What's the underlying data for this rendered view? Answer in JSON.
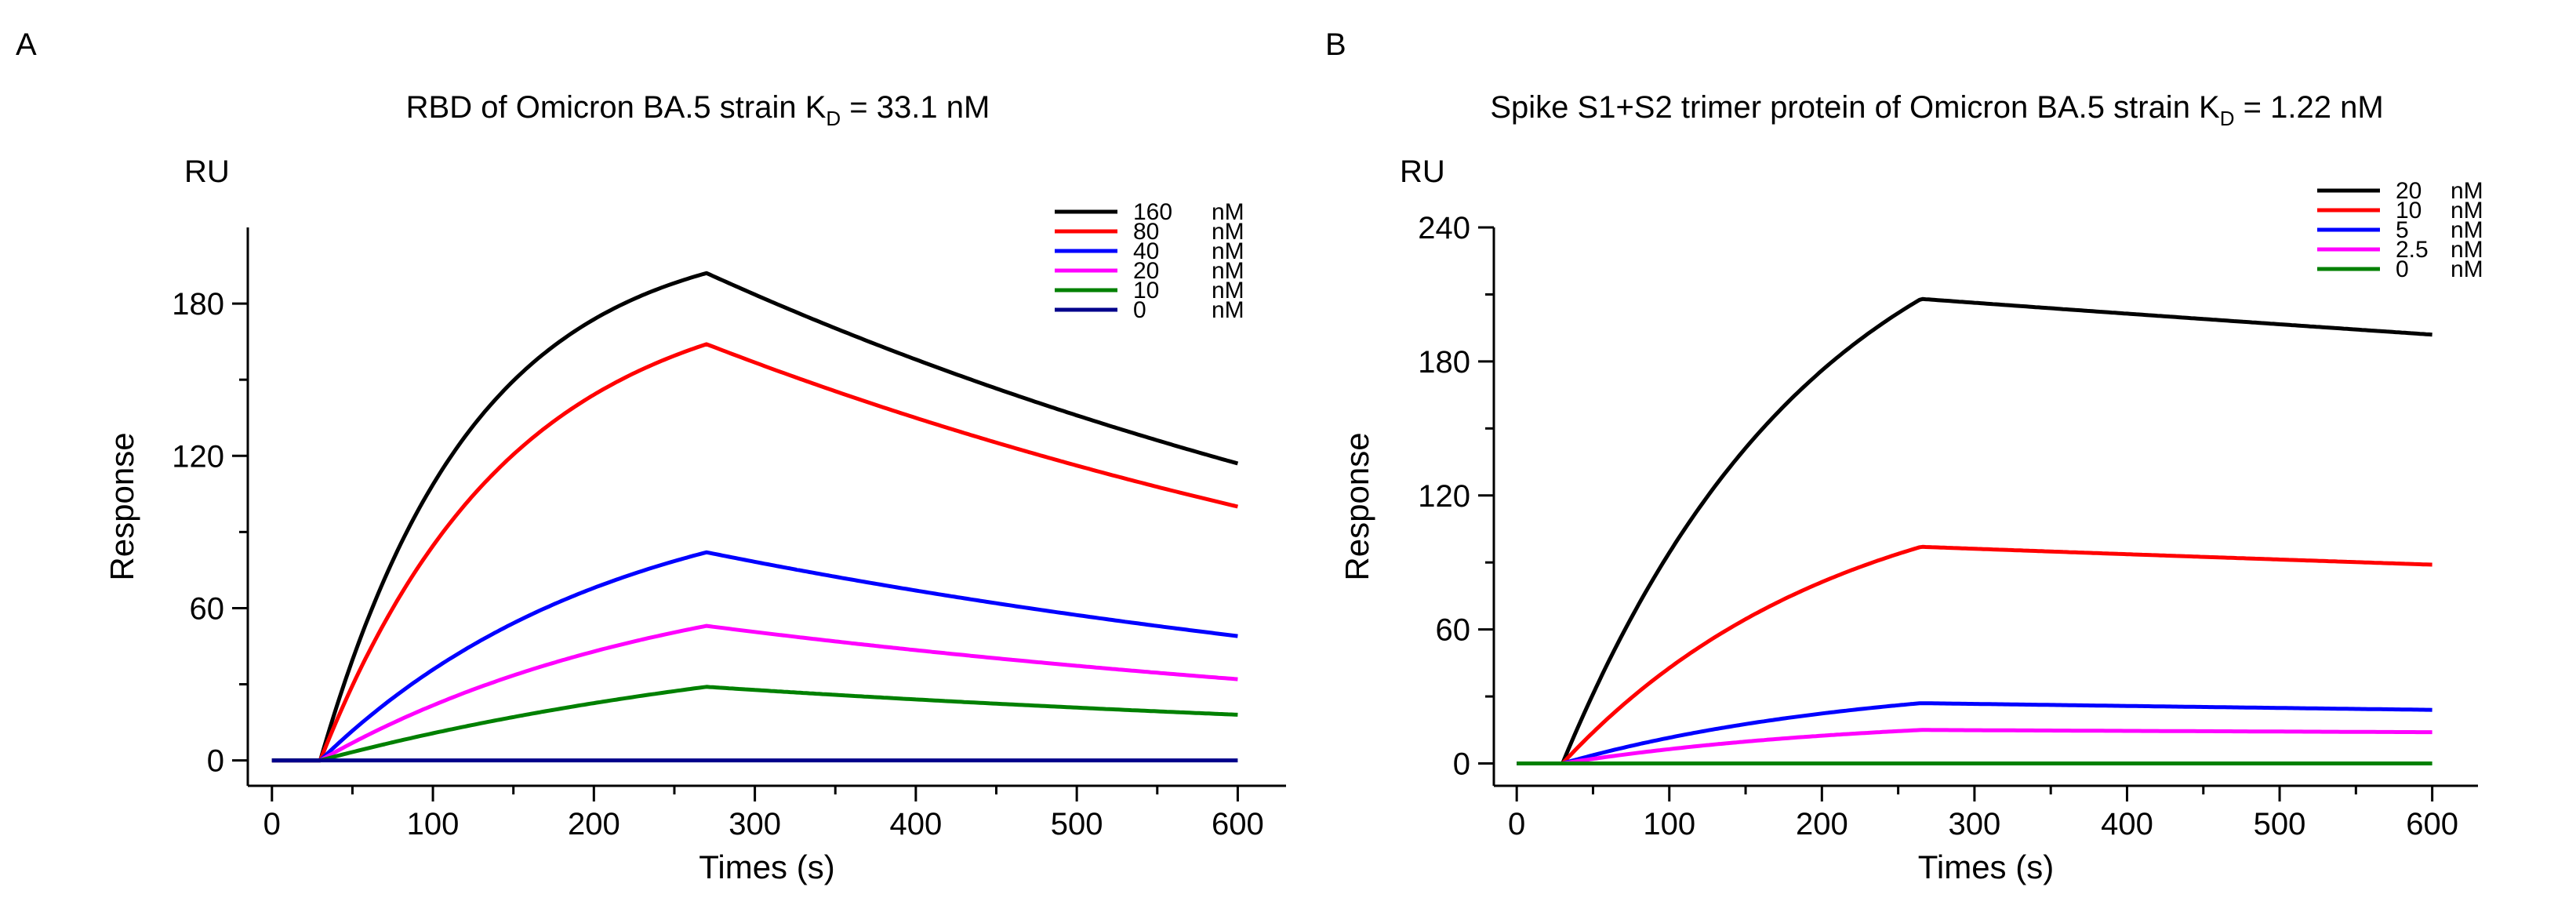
{
  "chart_data": [
    {
      "type": "line",
      "panel_label": "A",
      "title_main": "RBD of Omicron BA.5 strain K",
      "title_sub": "D",
      "title_rest": " = 33.1 nM",
      "unit_label": "RU",
      "xlabel": "Times (s)",
      "ylabel": "Response",
      "xlim": [
        -15,
        630
      ],
      "ylim": [
        -10,
        210
      ],
      "xticks": [
        0,
        100,
        200,
        300,
        400,
        500,
        600
      ],
      "yticks": [
        0,
        60,
        120,
        180
      ],
      "legend_position": "top-right",
      "model": {
        "t0": 30,
        "t_end_assoc": 270,
        "t_end": 600
      },
      "series": [
        {
          "name": "160",
          "unit": "nM",
          "color": "#000000",
          "peak": 192,
          "final": 117,
          "ka": 0.0105
        },
        {
          "name": "80",
          "unit": "nM",
          "color": "#ff0000",
          "peak": 164,
          "final": 100,
          "ka": 0.0085
        },
        {
          "name": "40",
          "unit": "nM",
          "color": "#0000ff",
          "peak": 82,
          "final": 49,
          "ka": 0.0055
        },
        {
          "name": "20",
          "unit": "nM",
          "color": "#ff00ff",
          "peak": 53,
          "final": 32,
          "ka": 0.0045
        },
        {
          "name": "10",
          "unit": "nM",
          "color": "#008000",
          "peak": 29,
          "final": 18,
          "ka": 0.003
        },
        {
          "name": "0",
          "unit": "nM",
          "color": "#00008b",
          "peak": 0,
          "final": 0,
          "ka": 0.003
        }
      ]
    },
    {
      "type": "line",
      "panel_label": "B",
      "title_main": "Spike S1+S2 trimer protein of Omicron BA.5 strain K",
      "title_sub": "D",
      "title_rest": " = 1.22 nM",
      "unit_label": "RU",
      "xlabel": "Times (s)",
      "ylabel": "Response",
      "xlim": [
        -15,
        630
      ],
      "ylim": [
        -10,
        240
      ],
      "xticks": [
        0,
        100,
        200,
        300,
        400,
        500,
        600
      ],
      "yticks": [
        0,
        60,
        120,
        180,
        240
      ],
      "legend_position": "top-right",
      "model": {
        "t0": 30,
        "t_end_assoc": 265,
        "t_end": 600
      },
      "series": [
        {
          "name": "20",
          "unit": "nM",
          "color": "#000000",
          "peak": 208,
          "final": 192,
          "ka": 0.006
        },
        {
          "name": "10",
          "unit": "nM",
          "color": "#ff0000",
          "peak": 97,
          "final": 89,
          "ka": 0.0055
        },
        {
          "name": "5",
          "unit": "nM",
          "color": "#0000ff",
          "peak": 27,
          "final": 24,
          "ka": 0.005
        },
        {
          "name": "2.5",
          "unit": "nM",
          "color": "#ff00ff",
          "peak": 15,
          "final": 14,
          "ka": 0.005
        },
        {
          "name": "0",
          "unit": "nM",
          "color": "#008000",
          "peak": 0,
          "final": 0,
          "ka": 0.005
        }
      ]
    }
  ]
}
